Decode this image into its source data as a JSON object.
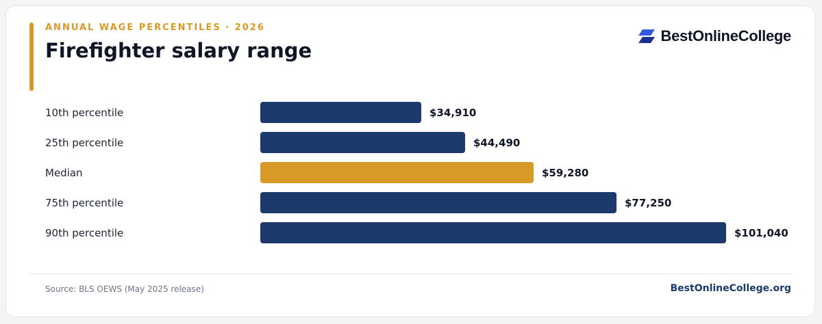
{
  "header": {
    "eyebrow": "ANNUAL WAGE PERCENTILES · 2026",
    "title": "Firefighter salary range"
  },
  "brand": {
    "name": "BestOnlineCollege",
    "logo_icon": "double-parallelogram-logo-icon"
  },
  "footer": {
    "source": "Source: BLS OEWS (May 2025 release)",
    "site": "BestOnlineCollege.org"
  },
  "colors": {
    "primary_bar": "#1c3a6b",
    "highlight_bar": "#d89a26",
    "accent": "#d89a26",
    "brand_blue": "#2f5be0"
  },
  "chart_data": {
    "type": "bar",
    "orientation": "horizontal",
    "categories": [
      "10th percentile",
      "25th percentile",
      "Median",
      "75th percentile",
      "90th percentile"
    ],
    "values": [
      34910,
      44490,
      59280,
      77250,
      101040
    ],
    "value_labels": [
      "$34,910",
      "$44,490",
      "$59,280",
      "$77,250",
      "$101,040"
    ],
    "highlight_index": 2,
    "xlim": [
      0,
      101040
    ],
    "grid": false,
    "legend": "none"
  }
}
